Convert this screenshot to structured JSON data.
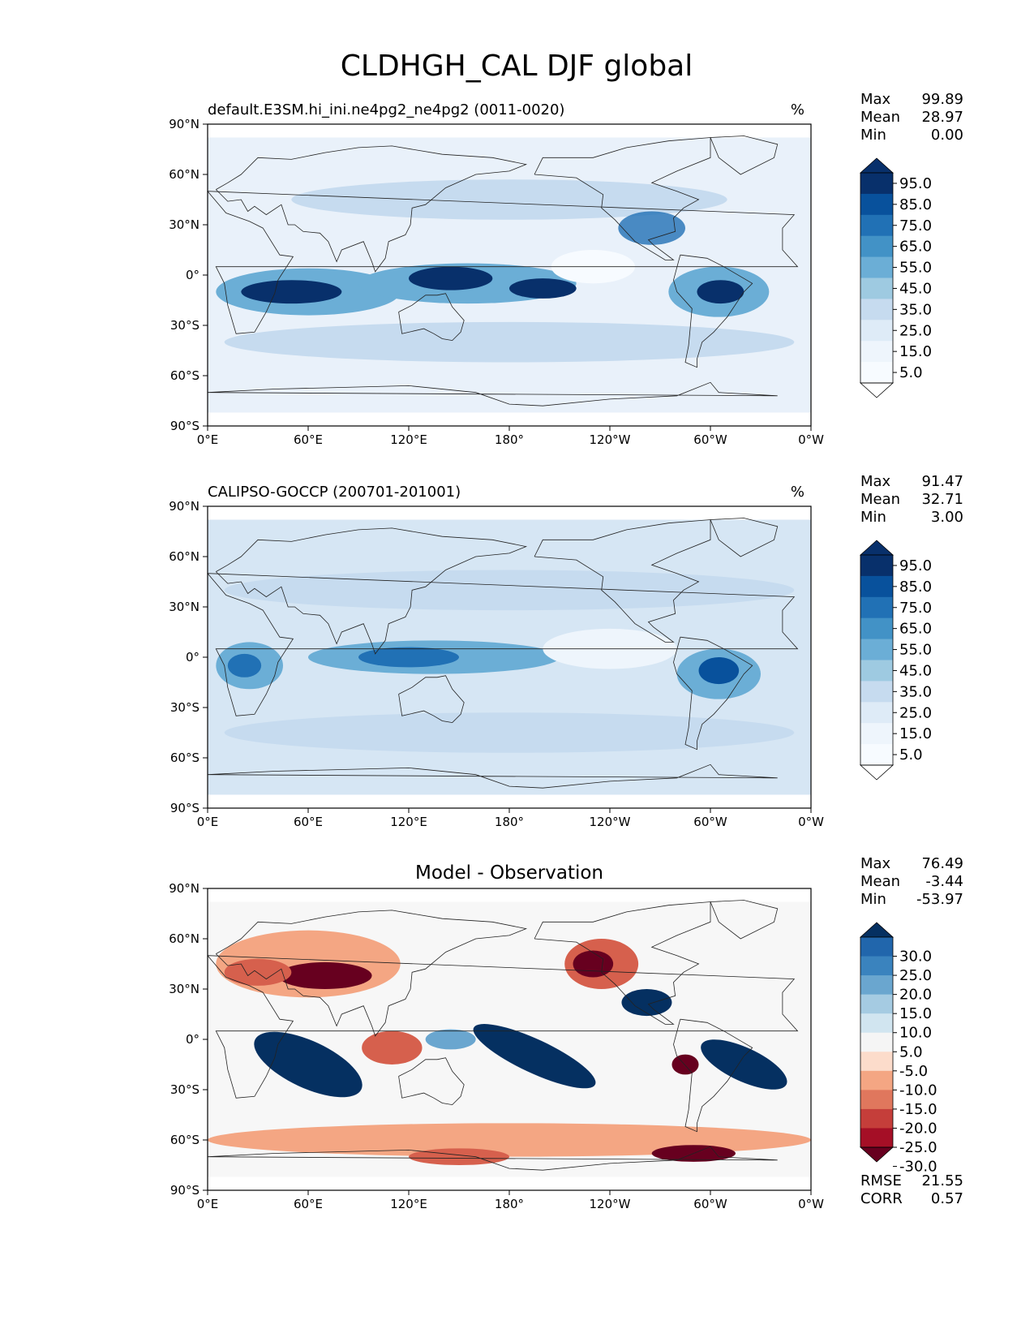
{
  "title": "CLDHGH_CAL DJF global",
  "x_ticks": [
    "0°E",
    "60°E",
    "120°E",
    "180°",
    "120°W",
    "60°W",
    "0°W"
  ],
  "y_ticks": [
    "90°N",
    "60°N",
    "30°N",
    "0°",
    "30°S",
    "60°S",
    "90°S"
  ],
  "stat_labels": {
    "max": "Max",
    "mean": "Mean",
    "min": "Min",
    "rmse": "RMSE",
    "corr": "CORR"
  },
  "panels": [
    {
      "id": "model",
      "title_left": "default.E3SM.hi_ini.ne4pg2_ne4pg2 (0011-0020)",
      "title_center": "",
      "units": "%",
      "stats": {
        "max": "99.89",
        "mean": "28.97",
        "min": "0.00"
      },
      "colorbar": {
        "labels": [
          "95.0",
          "85.0",
          "75.0",
          "65.0",
          "55.0",
          "45.0",
          "35.0",
          "25.0",
          "15.0",
          "5.0"
        ],
        "colors": [
          "#08306b",
          "#08519c",
          "#2171b5",
          "#4292c6",
          "#6baed6",
          "#9ecae1",
          "#c6dbef",
          "#deebf7",
          "#eef5fc",
          "#f7fbff"
        ],
        "over_color": "#08306b",
        "under_color": "#ffffff"
      },
      "map_colors": {
        "base": "#e9f1fa",
        "light": "#c6dbef",
        "mid": "#6baed6",
        "strong": "#2171b5",
        "dark": "#08306b",
        "pale": "#f7fbff"
      }
    },
    {
      "id": "obs",
      "title_left": "CALIPSO-GOCCP (200701-201001)",
      "title_center": "",
      "units": "%",
      "stats": {
        "max": "91.47",
        "mean": "32.71",
        "min": "3.00"
      },
      "colorbar": {
        "labels": [
          "95.0",
          "85.0",
          "75.0",
          "65.0",
          "55.0",
          "45.0",
          "35.0",
          "25.0",
          "15.0",
          "5.0"
        ],
        "colors": [
          "#08306b",
          "#08519c",
          "#2171b5",
          "#4292c6",
          "#6baed6",
          "#9ecae1",
          "#c6dbef",
          "#deebf7",
          "#eef5fc",
          "#f7fbff"
        ],
        "over_color": "#08306b",
        "under_color": "#ffffff"
      },
      "map_colors": {
        "base": "#d6e6f4",
        "light": "#c6dbef",
        "mid": "#6baed6",
        "strong": "#2171b5",
        "dark": "#08519c",
        "pale": "#eef5fc"
      }
    },
    {
      "id": "diff",
      "title_left": "",
      "title_center": "Model - Observation",
      "units": "",
      "stats": {
        "max": "76.49",
        "mean": "-3.44",
        "min": "-53.97",
        "rmse": "21.55",
        "corr": "0.57"
      },
      "colorbar": {
        "labels": [
          "30.0",
          "25.0",
          "20.0",
          "15.0",
          "10.0",
          "5.0",
          "-5.0",
          "-10.0",
          "-15.0",
          "-20.0",
          "-25.0",
          "-30.0"
        ],
        "colors": [
          "#2166ac",
          "#3a83be",
          "#6aa6cf",
          "#a5cbe2",
          "#d1e5f0",
          "#f5f5f5",
          "#fcdccb",
          "#f4a683",
          "#e0775d",
          "#c53e3a",
          "#a50f26"
        ],
        "over_color": "#053061",
        "under_color": "#67001f"
      },
      "map_colors": {
        "base": "#f7f7f7",
        "pos1": "#d1e5f0",
        "pos2": "#6aa6cf",
        "pos3": "#053061",
        "neg1": "#f4a683",
        "neg2": "#d6604d",
        "neg3": "#67001f"
      }
    }
  ]
}
